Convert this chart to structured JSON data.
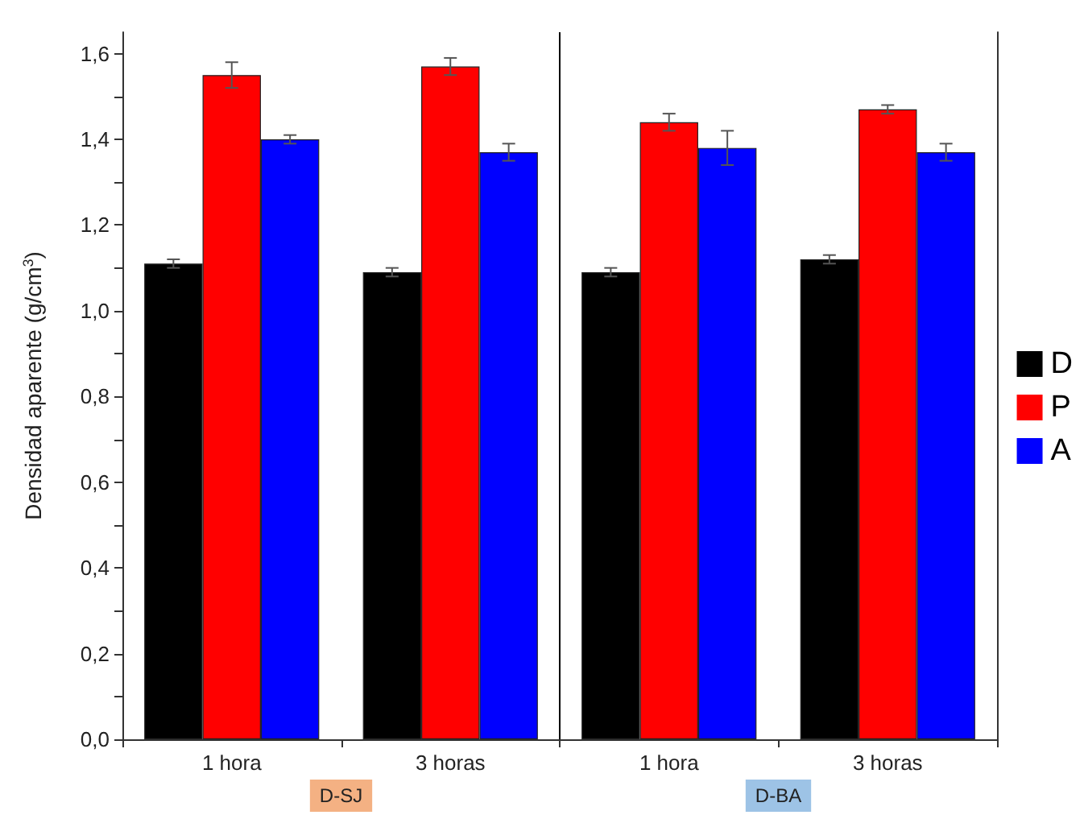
{
  "chart_data": {
    "type": "bar",
    "ylabel": "Densidad aparente (g/cm$^{3}$)",
    "categories": [
      "1 hora",
      "3 horas",
      "1 hora",
      "3 horas"
    ],
    "series": [
      {
        "name": "D",
        "color": "#000000",
        "values": [
          1.11,
          1.09,
          1.09,
          1.12
        ],
        "errors": [
          0.01,
          0.01,
          0.01,
          0.01
        ]
      },
      {
        "name": "P",
        "color": "#ff0000",
        "values": [
          1.55,
          1.57,
          1.44,
          1.47
        ],
        "errors": [
          0.03,
          0.02,
          0.02,
          0.01
        ]
      },
      {
        "name": "A",
        "color": "#0000ff",
        "values": [
          1.4,
          1.37,
          1.38,
          1.37
        ],
        "errors": [
          0.01,
          0.02,
          0.04,
          0.02
        ]
      }
    ],
    "ylim": [
      0,
      1.65
    ],
    "yticks": [
      {
        "value": 0,
        "label": "0,0"
      },
      {
        "value": 0.1,
        "label": null
      },
      {
        "value": 0.2,
        "label": "0,2"
      },
      {
        "value": 0.3,
        "label": null
      },
      {
        "value": 0.4,
        "label": "0,4"
      },
      {
        "value": 0.5,
        "label": null
      },
      {
        "value": 0.6,
        "label": "0,6"
      },
      {
        "value": 0.7,
        "label": null
      },
      {
        "value": 0.8,
        "label": "0,8"
      },
      {
        "value": 0.9,
        "label": null
      },
      {
        "value": 1.0,
        "label": "1,0"
      },
      {
        "value": 1.1,
        "label": null
      },
      {
        "value": 1.2,
        "label": "1,2"
      },
      {
        "value": 1.3,
        "label": null
      },
      {
        "value": 1.4,
        "label": "1,4"
      },
      {
        "value": 1.5,
        "label": null
      },
      {
        "value": 1.6,
        "label": "1,6"
      }
    ],
    "annotations": [
      "D-SJ",
      "D-BA"
    ],
    "grid": false,
    "legend": "right"
  }
}
